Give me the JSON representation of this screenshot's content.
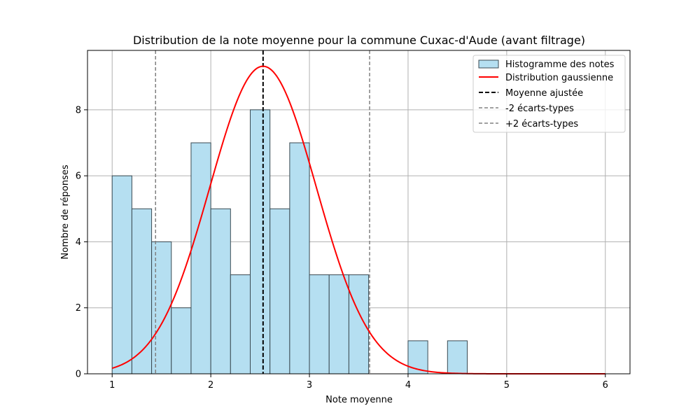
{
  "chart_data": {
    "type": "bar",
    "title": "Distribution de la note moyenne pour la commune Cuxac-d'Aude (avant filtrage)",
    "xlabel": "Note moyenne",
    "ylabel": "Nombre de réponses",
    "xlim": [
      0.75,
      6.25
    ],
    "ylim": [
      0,
      9.8
    ],
    "xticks": [
      1,
      2,
      3,
      4,
      5,
      6
    ],
    "yticks": [
      0,
      2,
      4,
      6,
      8
    ],
    "grid": true,
    "legend_position": "top-right",
    "bin_width": 0.2,
    "histogram": {
      "name": "Histogramme des notes",
      "color": "#b5dff1",
      "edge_color": "#3a4a52",
      "bin_starts": [
        1.0,
        1.2,
        1.4,
        1.6,
        1.8,
        2.0,
        2.2,
        2.4,
        2.6,
        2.8,
        3.0,
        3.2,
        3.4,
        3.6,
        3.8,
        4.0,
        4.2,
        4.4
      ],
      "counts": [
        6,
        5,
        4,
        2,
        7,
        5,
        3,
        8,
        5,
        7,
        3,
        3,
        3,
        0,
        0,
        1,
        0,
        1
      ]
    },
    "gaussian": {
      "name": "Distribution gaussienne",
      "color": "#ff0000",
      "mean": 2.53,
      "std": 0.54,
      "peak": 9.32,
      "x_range": [
        1,
        6
      ]
    },
    "mean_line": {
      "name": "Moyenne ajustée",
      "x": 2.53,
      "color": "#000000"
    },
    "minus2sd_line": {
      "name": "-2 écarts-types",
      "x": 1.44,
      "color": "#808080"
    },
    "plus2sd_line": {
      "name": "+2 écarts-types",
      "x": 3.61,
      "color": "#808080"
    }
  }
}
